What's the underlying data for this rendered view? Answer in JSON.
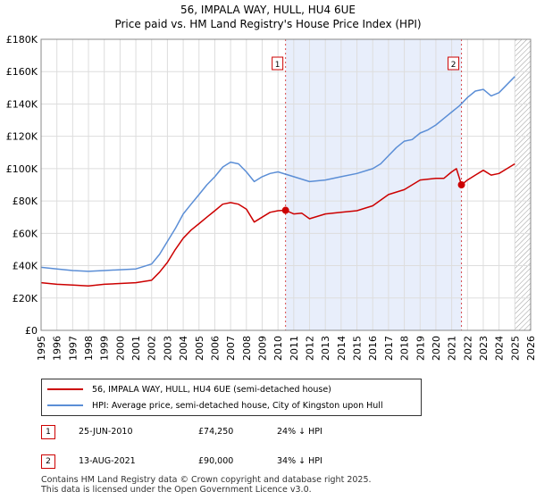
{
  "header": {
    "title": "56, IMPALA WAY, HULL, HU4 6UE",
    "subtitle": "Price paid vs. HM Land Registry's House Price Index (HPI)"
  },
  "colors": {
    "red": "#cc0000",
    "blue": "#5b8ed6",
    "shade": "#e8eefb",
    "grid": "#dddddd"
  },
  "chart_data": {
    "type": "line",
    "title": "56, IMPALA WAY, HULL, HU4 6UE",
    "subtitle": "Price paid vs. HM Land Registry's House Price Index (HPI)",
    "xlim": [
      1995,
      2026
    ],
    "ylim": [
      0,
      180000
    ],
    "x_ticks": [
      "1995",
      "1996",
      "1997",
      "1998",
      "1999",
      "2000",
      "2001",
      "2002",
      "2003",
      "2004",
      "2005",
      "2006",
      "2007",
      "2008",
      "2009",
      "2010",
      "2011",
      "2012",
      "2013",
      "2014",
      "2015",
      "2016",
      "2017",
      "2018",
      "2019",
      "2020",
      "2021",
      "2022",
      "2023",
      "2024",
      "2025",
      "2026"
    ],
    "y_ticks": [
      {
        "value": 0,
        "label": "£0"
      },
      {
        "value": 20000,
        "label": "£20K"
      },
      {
        "value": 40000,
        "label": "£40K"
      },
      {
        "value": 60000,
        "label": "£60K"
      },
      {
        "value": 80000,
        "label": "£80K"
      },
      {
        "value": 100000,
        "label": "£100K"
      },
      {
        "value": 120000,
        "label": "£120K"
      },
      {
        "value": 140000,
        "label": "£140K"
      },
      {
        "value": 160000,
        "label": "£160K"
      },
      {
        "value": 180000,
        "label": "£180K"
      }
    ],
    "shaded_range": [
      2010.48,
      2021.62
    ],
    "hatched_from": 2025.0,
    "series": [
      {
        "name": "56, IMPALA WAY, HULL, HU4 6UE (semi-detached house)",
        "color": "#cc0000",
        "x": [
          1995,
          1996,
          1997,
          1998,
          1999,
          2000,
          2001,
          2002,
          2002.5,
          2003,
          2003.5,
          2004,
          2004.5,
          2005,
          2005.5,
          2006,
          2006.5,
          2007,
          2007.5,
          2008,
          2008.5,
          2009,
          2009.5,
          2010,
          2010.48,
          2011,
          2011.5,
          2012,
          2013,
          2014,
          2015,
          2016,
          2017,
          2018,
          2019,
          2020,
          2020.5,
          2021,
          2021.3,
          2021.62,
          2022,
          2022.5,
          2023,
          2023.5,
          2024,
          2024.5,
          2025
        ],
        "y": [
          29500,
          28500,
          28000,
          27500,
          28500,
          29000,
          29500,
          31000,
          36000,
          42000,
          50000,
          57000,
          62000,
          66000,
          70000,
          74000,
          78000,
          79000,
          78000,
          75000,
          67000,
          70000,
          73000,
          74000,
          74250,
          72000,
          72500,
          69000,
          72000,
          73000,
          74000,
          77000,
          84000,
          87000,
          93000,
          94000,
          94000,
          98000,
          100000,
          90000,
          93000,
          96000,
          99000,
          96000,
          97000,
          100000,
          103000
        ]
      },
      {
        "name": "HPI: Average price, semi-detached house, City of Kingston upon Hull",
        "color": "#5b8ed6",
        "x": [
          1995,
          1996,
          1997,
          1998,
          1999,
          2000,
          2001,
          2002,
          2002.5,
          2003,
          2003.5,
          2004,
          2004.5,
          2005,
          2005.5,
          2006,
          2006.5,
          2007,
          2007.5,
          2008,
          2008.5,
          2009,
          2009.5,
          2010,
          2011,
          2012,
          2013,
          2014,
          2015,
          2016,
          2016.5,
          2017,
          2017.5,
          2018,
          2018.5,
          2019,
          2019.5,
          2020,
          2020.5,
          2021,
          2021.5,
          2022,
          2022.5,
          2023,
          2023.5,
          2024,
          2024.5,
          2025
        ],
        "y": [
          39000,
          38000,
          37000,
          36500,
          37000,
          37500,
          38000,
          41000,
          47000,
          55000,
          63000,
          72000,
          78000,
          84000,
          90000,
          95000,
          101000,
          104000,
          103000,
          98000,
          92000,
          95000,
          97000,
          98000,
          95000,
          92000,
          93000,
          95000,
          97000,
          100000,
          103000,
          108000,
          113000,
          117000,
          118000,
          122000,
          124000,
          127000,
          131000,
          135000,
          139000,
          144000,
          148000,
          149000,
          145000,
          147000,
          152000,
          157000
        ]
      }
    ],
    "markers": [
      {
        "label": "1",
        "x": 2010.48,
        "y": 74250
      },
      {
        "label": "2",
        "x": 2021.62,
        "y": 90000
      }
    ]
  },
  "legend": [
    {
      "label": "56, IMPALA WAY, HULL, HU4 6UE (semi-detached house)",
      "color": "#cc0000"
    },
    {
      "label": "HPI: Average price, semi-detached house, City of Kingston upon Hull",
      "color": "#5b8ed6"
    }
  ],
  "sales": [
    {
      "num": "1",
      "date": "25-JUN-2010",
      "price": "£74,250",
      "hpi": "24% ↓ HPI"
    },
    {
      "num": "2",
      "date": "13-AUG-2021",
      "price": "£90,000",
      "hpi": "34% ↓ HPI"
    }
  ],
  "footer": {
    "line1": "Contains HM Land Registry data © Crown copyright and database right 2025.",
    "line2": "This data is licensed under the Open Government Licence v3.0."
  }
}
